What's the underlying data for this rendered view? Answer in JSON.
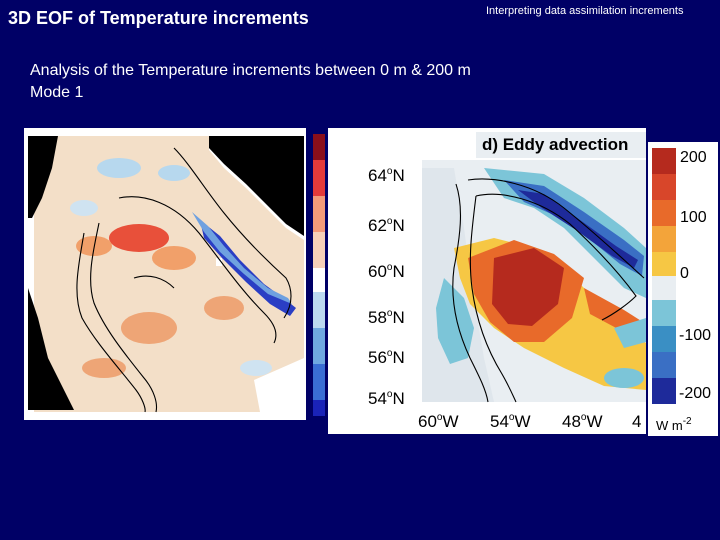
{
  "slide": {
    "title": "3D EOF of Temperature increments",
    "subtitle": "Interpreting data assimilation increments",
    "body_line1": "Analysis of the Temperature increments between  0 m & 200 m",
    "body_line2": "Mode 1"
  },
  "figure": {
    "panel_title": "d) Eddy advection",
    "latitude_labels": [
      {
        "deg": "64",
        "hemi": "N"
      },
      {
        "deg": "62",
        "hemi": "N"
      },
      {
        "deg": "60",
        "hemi": "N"
      },
      {
        "deg": "58",
        "hemi": "N"
      },
      {
        "deg": "56",
        "hemi": "N"
      },
      {
        "deg": "54",
        "hemi": "N"
      }
    ],
    "longitude_labels": [
      {
        "deg": "60",
        "hemi": "W"
      },
      {
        "deg": "54",
        "hemi": "W"
      },
      {
        "deg": "48",
        "hemi": "W"
      },
      {
        "deg": "4",
        "hemi": ""
      }
    ],
    "colorbar_ticks": [
      "200",
      "100",
      "0",
      "-100",
      "-200"
    ],
    "colorbar_unit_base": "W m",
    "colorbar_unit_exp": "-2",
    "colors": {
      "background": "#000066",
      "land_left": "#000000",
      "positive_strong": "#b52a1e",
      "positive_mid": "#e86a2a",
      "positive_light": "#f6c744",
      "neutral": "#e9eef2",
      "negative_light": "#7cc5d8",
      "negative_mid": "#3a6fc4",
      "negative_strong": "#1e2a9a"
    }
  }
}
